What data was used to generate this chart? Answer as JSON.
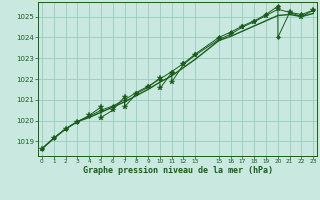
{
  "title": "Graphe pression niveau de la mer (hPa)",
  "bg_color": "#c8e8e0",
  "plot_bg_color": "#c8e8e0",
  "grid_color": "#99ccbb",
  "line_color": "#1a5c1a",
  "xlim": [
    -0.3,
    23.3
  ],
  "ylim": [
    1018.3,
    1025.7
  ],
  "ytick_values": [
    1019,
    1020,
    1021,
    1022,
    1023,
    1024,
    1025
  ],
  "xtick_positions": [
    0,
    1,
    2,
    3,
    4,
    5,
    6,
    7,
    8,
    9,
    10,
    11,
    12,
    13,
    15,
    16,
    17,
    18,
    19,
    20,
    21,
    22,
    23
  ],
  "xtick_labels": [
    "0",
    "1",
    "2",
    "3",
    "4",
    "5",
    "6",
    "7",
    "8",
    "9",
    "10",
    "11",
    "12",
    "13",
    "15",
    "16",
    "17",
    "18",
    "19",
    "20",
    "21",
    "22",
    "23"
  ],
  "smooth_x": [
    0,
    1,
    2,
    3,
    4,
    5,
    6,
    7,
    8,
    9,
    10,
    11,
    12,
    13,
    15,
    16,
    17,
    18,
    19,
    20,
    21,
    22,
    23
  ],
  "smooth_y": [
    1018.65,
    1019.15,
    1019.6,
    1019.95,
    1020.15,
    1020.4,
    1020.65,
    1020.9,
    1021.2,
    1021.5,
    1021.85,
    1022.15,
    1022.55,
    1022.95,
    1023.85,
    1024.05,
    1024.3,
    1024.55,
    1024.8,
    1025.05,
    1025.1,
    1025.0,
    1025.15
  ],
  "star_x": [
    0,
    1,
    2,
    3,
    4,
    5,
    5,
    6,
    7,
    7,
    8,
    9,
    10,
    10,
    11,
    11,
    12,
    13,
    15,
    16,
    17,
    18,
    19,
    20,
    21,
    22,
    23
  ],
  "star_y": [
    1018.65,
    1019.15,
    1019.6,
    1019.95,
    1020.25,
    1020.65,
    1020.15,
    1020.5,
    1021.15,
    1020.65,
    1021.3,
    1021.6,
    1022.05,
    1021.55,
    1022.3,
    1021.85,
    1022.7,
    1023.15,
    1023.9,
    1024.15,
    1024.5,
    1024.75,
    1025.05,
    1025.35,
    1025.2,
    1025.0,
    1025.3
  ],
  "diamond_x": [
    0,
    1,
    2,
    3,
    4,
    5,
    6,
    7,
    8,
    9,
    10,
    11,
    12,
    13,
    15,
    16,
    17,
    18,
    19,
    20,
    20,
    21,
    22,
    23
  ],
  "diamond_y": [
    1018.65,
    1019.15,
    1019.6,
    1019.95,
    1020.2,
    1020.5,
    1020.7,
    1021.0,
    1021.35,
    1021.65,
    1022.0,
    1022.35,
    1022.75,
    1023.2,
    1024.0,
    1024.25,
    1024.55,
    1024.8,
    1025.1,
    1025.5,
    1024.0,
    1025.2,
    1025.1,
    1025.3
  ]
}
